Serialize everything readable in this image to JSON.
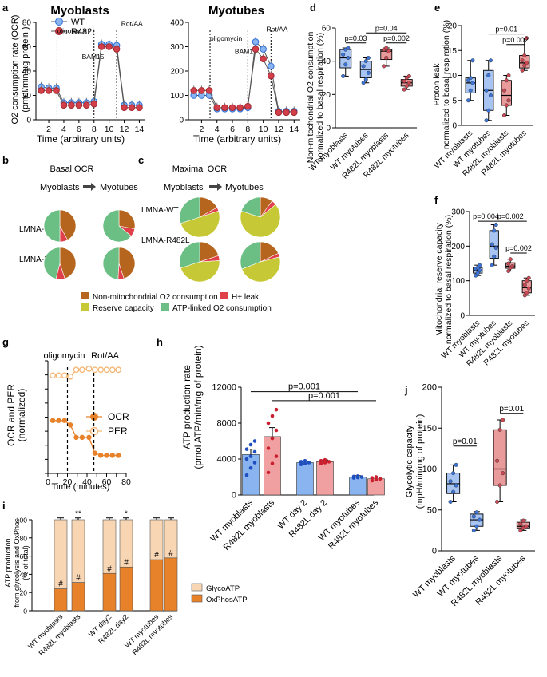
{
  "colors": {
    "wt_blue": "#8ab4f0",
    "wt_blue_dark": "#2f6fd6",
    "r482l_red": "#e88a8a",
    "r482l_red_dark": "#d23f4a",
    "nonmito": "#b5651d",
    "hleak": "#e0404a",
    "reserve": "#c6c935",
    "atplinked": "#6cbf84",
    "glyco": "#f8d6b4",
    "oxphos": "#e8822a",
    "orange": "#e8822a",
    "orange_light": "#f4b674"
  },
  "panels": {
    "a": "a",
    "b": "b",
    "c": "c",
    "d": "d",
    "e": "e",
    "f": "f",
    "g": "g",
    "h": "h",
    "i": "i",
    "j": "j"
  },
  "chart_data": [
    {
      "id": "a1",
      "type": "line",
      "title": "Myoblasts",
      "ylabel_line1": "O2 consumption rate (OCR)",
      "ylabel_line2": "(pmol/min/µg protein )",
      "xlabel": "Time (arbitrary units)",
      "xticks": [
        "2",
        "4",
        "6",
        "8",
        "10",
        "12",
        "14"
      ],
      "xtick_vals": [
        2,
        4,
        6,
        8,
        10,
        12,
        14
      ],
      "yticks": [
        "0",
        "20",
        "40",
        "60",
        "80"
      ],
      "ytick_vals": [
        0,
        20,
        40,
        60,
        80
      ],
      "xlim": [
        0.3,
        14.8
      ],
      "ylim": [
        0,
        80
      ],
      "annotations": [
        {
          "text": "oligomycin",
          "x": 3.1,
          "y": 71,
          "vline": 3.1
        },
        {
          "text": "BAM15",
          "x": 6.4,
          "y": 50,
          "vline": 8
        },
        {
          "text": "Rot/AA",
          "x": 11.6,
          "y": 77,
          "vline": 11
        }
      ],
      "legend": [
        "WT",
        "R482L"
      ],
      "x": [
        1,
        2,
        3,
        4,
        5,
        6,
        7,
        8,
        9,
        10,
        11,
        12,
        13,
        14
      ],
      "series": [
        {
          "name": "WT",
          "values": [
            27,
            26,
            26,
            14,
            14,
            14,
            14,
            15,
            62,
            62,
            61,
            12,
            12,
            12
          ]
        },
        {
          "name": "R482L",
          "values": [
            24,
            24,
            24,
            12,
            12,
            12,
            12,
            13,
            60,
            60,
            58,
            10,
            10,
            10
          ]
        }
      ]
    },
    {
      "id": "a2",
      "type": "line",
      "title": "Myotubes",
      "xlabel": "Time (arbitrary units)",
      "xticks": [
        "2",
        "4",
        "6",
        "8",
        "10",
        "12",
        "14"
      ],
      "xtick_vals": [
        2,
        4,
        6,
        8,
        10,
        12,
        14
      ],
      "yticks": [
        "0",
        "100",
        "200",
        "300",
        "400"
      ],
      "ytick_vals": [
        0,
        100,
        200,
        300,
        400
      ],
      "xlim": [
        0.3,
        14.8
      ],
      "ylim": [
        0,
        400
      ],
      "annotations": [
        {
          "text": "oligomycin",
          "x": 3.1,
          "y": 325,
          "vline": 3.1
        },
        {
          "text": "BAM15",
          "x": 6.3,
          "y": 270,
          "vline": 8
        },
        {
          "text": "Rot/AA",
          "x": 10.4,
          "y": 362,
          "vline": 11
        }
      ],
      "x": [
        1,
        2,
        3,
        4,
        5,
        6,
        7,
        8,
        9,
        10,
        11,
        12,
        13,
        14
      ],
      "series": [
        {
          "name": "WT",
          "values": [
            100,
            100,
            100,
            45,
            45,
            45,
            45,
            50,
            320,
            290,
            220,
            35,
            35,
            35
          ]
        },
        {
          "name": "R482L",
          "values": [
            120,
            120,
            120,
            50,
            50,
            50,
            50,
            55,
            290,
            250,
            180,
            30,
            30,
            30
          ]
        }
      ]
    },
    {
      "id": "b",
      "type": "pie",
      "title": "Basal OCR",
      "flow_left": "Myoblasts",
      "flow_right": "Myotubes",
      "row_labels": [
        "LMNA-WT",
        "LMNA-R482L"
      ],
      "slice_order": [
        "Non-mitochondrial O2 consumption",
        "H+ leak",
        "ATP-linked O2 consumption"
      ],
      "pies": [
        {
          "values": [
            42,
            8,
            50
          ]
        },
        {
          "values": [
            28,
            8,
            64
          ]
        },
        {
          "values": [
            45,
            9,
            46
          ]
        },
        {
          "values": [
            45,
            6,
            49
          ]
        }
      ]
    },
    {
      "id": "c",
      "type": "pie",
      "title": "Maximal OCR",
      "flow_left": "Myoblasts",
      "flow_right": "Myotubes",
      "row_labels": [
        "LMNA-WT",
        "LMNA-R482L"
      ],
      "slice_order": [
        "Non-mitochondrial O2 consumption",
        "H+ leak",
        "Reserve capacity",
        "ATP-linked O2 consumption"
      ],
      "pies": [
        {
          "values": [
            17,
            3,
            50,
            30
          ]
        },
        {
          "values": [
            10,
            4,
            66,
            20
          ]
        },
        {
          "values": [
            20,
            4,
            46,
            30
          ]
        },
        {
          "values": [
            18,
            3,
            48,
            31
          ]
        }
      ],
      "legend": [
        "Non-mitochondrial O2 consumption",
        "H+ leak",
        "Reserve capacity",
        "ATP-linked O2 consumption"
      ]
    },
    {
      "id": "d",
      "type": "box",
      "ylabel_line1": "Non-mitochondrial O2 consumption",
      "ylabel_line2": "normalized to basal respiration (%)",
      "categories": [
        "WT myoblasts",
        "WT myotubes",
        "R482L myoblasts",
        "R482L myotubes"
      ],
      "yticks": [
        "0",
        "20",
        "40",
        "60"
      ],
      "ytick_vals": [
        0,
        20,
        40,
        60
      ],
      "ylim": [
        0,
        60
      ],
      "boxes": [
        {
          "min": 31,
          "q1": 36,
          "median": 42,
          "q3": 47,
          "max": 48,
          "points": [
            31,
            38,
            42,
            44,
            47,
            48
          ]
        },
        {
          "min": 27,
          "q1": 30,
          "median": 35,
          "q3": 40,
          "max": 42,
          "points": [
            27,
            29,
            33,
            37,
            40,
            42
          ]
        },
        {
          "min": 37,
          "q1": 41,
          "median": 46,
          "q3": 47,
          "max": 48,
          "points": [
            37,
            42,
            46,
            47,
            48
          ]
        },
        {
          "min": 23,
          "q1": 25,
          "median": 27,
          "q3": 29,
          "max": 31,
          "points": [
            23,
            25,
            27,
            28,
            30,
            31
          ]
        }
      ],
      "sig": [
        {
          "a": 0,
          "b": 1,
          "label": "p=0.03",
          "y": 51
        },
        {
          "a": 2,
          "b": 3,
          "label": "p=0.002",
          "y": 51
        },
        {
          "a": 1,
          "b": 3,
          "label": "p=0.04",
          "y": 57
        }
      ]
    },
    {
      "id": "e",
      "type": "box",
      "ylabel_line1": "Proton leak",
      "ylabel_line2": "normalized to basal respiration (%)",
      "categories": [
        "WT myoblasts",
        "WT myotubes",
        "R482L myoblasts",
        "R482L myotubes"
      ],
      "yticks": [
        "0",
        "5",
        "10",
        "15",
        "20"
      ],
      "ytick_vals": [
        0,
        5,
        10,
        15,
        20
      ],
      "ylim": [
        0,
        20
      ],
      "boxes": [
        {
          "min": 5,
          "q1": 6.5,
          "median": 8.5,
          "q3": 9.5,
          "max": 13,
          "points": [
            5,
            7,
            8.5,
            9,
            9.5,
            13
          ]
        },
        {
          "min": 1,
          "q1": 3,
          "median": 7,
          "q3": 11,
          "max": 13,
          "points": [
            1,
            3,
            6,
            7,
            10,
            13
          ]
        },
        {
          "min": 2,
          "q1": 4,
          "median": 6,
          "q3": 9,
          "max": 10,
          "points": [
            2,
            4,
            5,
            7,
            9,
            10
          ]
        },
        {
          "min": 11,
          "q1": 11.5,
          "median": 12.5,
          "q3": 14,
          "max": 17.5,
          "points": [
            11,
            12,
            12.5,
            13,
            14,
            17.5
          ]
        }
      ],
      "sig": [
        {
          "a": 2,
          "b": 3,
          "label": "p=0.002",
          "y": 16.2
        },
        {
          "a": 1,
          "b": 3,
          "label": "p=0.01",
          "y": 18.3
        }
      ]
    },
    {
      "id": "f",
      "type": "box",
      "ylabel_line1": "Mitochondrial reserve capacity",
      "ylabel_line2": "normalized to basal respiration (%)",
      "categories": [
        "WT myoblasts",
        "WT myotubes",
        "R482L myoblasts",
        "R482L myotubes"
      ],
      "yticks": [
        "0",
        "100",
        "200",
        "300"
      ],
      "ytick_vals": [
        0,
        100,
        200,
        300
      ],
      "ylim": [
        0,
        300
      ],
      "boxes": [
        {
          "min": 115,
          "q1": 122,
          "median": 130,
          "q3": 138,
          "max": 145,
          "points": [
            115,
            122,
            130,
            135,
            138,
            145
          ]
        },
        {
          "min": 145,
          "q1": 165,
          "median": 200,
          "q3": 245,
          "max": 262,
          "points": [
            145,
            170,
            195,
            205,
            245,
            262
          ]
        },
        {
          "min": 128,
          "q1": 136,
          "median": 142,
          "q3": 152,
          "max": 162,
          "points": [
            128,
            138,
            142,
            150,
            162
          ]
        },
        {
          "min": 58,
          "q1": 65,
          "median": 80,
          "q3": 100,
          "max": 108,
          "points": [
            58,
            65,
            78,
            88,
            100,
            108
          ]
        }
      ],
      "sig": [
        {
          "a": 0,
          "b": 1,
          "label": "p=0.004",
          "y": 272
        },
        {
          "a": 1,
          "b": 3,
          "label": "p=0.002",
          "y": 272
        },
        {
          "a": 2,
          "b": 3,
          "label": "p=0.002",
          "y": 180
        }
      ]
    },
    {
      "id": "g",
      "type": "line",
      "ylabel_line1": "OCR and PER",
      "ylabel_line2": "(normalized)",
      "xlabel": "Time (minutes)",
      "xticks": [
        "0",
        "10",
        "20",
        "30",
        "40",
        "50",
        "60",
        "70",
        "80"
      ],
      "xtick_vals": [
        0,
        10,
        20,
        30,
        40,
        50,
        60,
        70,
        80
      ],
      "xlim": [
        0,
        80
      ],
      "ylim": [
        0,
        1
      ],
      "annotations": [
        {
          "text": "oligomycin",
          "x": 20,
          "vline": 20
        },
        {
          "text": "Rot/AA",
          "x": 47,
          "vline": 47
        }
      ],
      "legend": [
        "OCR",
        "PER"
      ],
      "x": [
        5,
        11,
        17,
        23,
        29,
        35,
        42,
        48,
        54,
        60,
        66,
        72
      ],
      "series": [
        {
          "name": "OCR",
          "values": [
            0.47,
            0.47,
            0.47,
            0.43,
            0.32,
            0.32,
            0.32,
            0.18,
            0.16,
            0.16,
            0.16,
            0.16
          ]
        },
        {
          "name": "PER",
          "values": [
            0.87,
            0.87,
            0.87,
            0.86,
            0.92,
            0.92,
            0.93,
            0.92,
            0.92,
            0.92,
            0.92,
            0.92
          ]
        }
      ]
    },
    {
      "id": "h",
      "type": "bar",
      "ylabel_line1": "ATP production rate",
      "ylabel_line2": "(pmol ATP/min/mg of protein)",
      "categories": [
        "WT myoblasts",
        "R482L myoblasts",
        "WT day 2",
        "R482L day 2",
        "WT myotubes",
        "R482L myotubes"
      ],
      "values": [
        4500,
        6500,
        3600,
        3700,
        2000,
        1800
      ],
      "errors": [
        600,
        1000,
        150,
        200,
        150,
        200
      ],
      "points": [
        [
          2200,
          3000,
          3600,
          4000,
          4300,
          4800,
          5100,
          5600,
          6000
        ],
        [
          2500,
          3500,
          4300,
          5200,
          6300,
          7200,
          8000,
          8800,
          9500
        ],
        [
          3400,
          3500,
          3600,
          3700,
          3800
        ],
        [
          3500,
          3600,
          3700,
          3800,
          3900
        ],
        [
          1900,
          1950,
          2000,
          2050,
          2100
        ],
        [
          1600,
          1700,
          1800,
          1900,
          2000
        ]
      ],
      "yticks": [
        "0",
        "4000",
        "8000",
        "12000"
      ],
      "ytick_vals": [
        0,
        4000,
        8000,
        12000
      ],
      "ylim": [
        0,
        12000
      ],
      "sig": [
        {
          "a": 0,
          "b": 4,
          "label": "p=0.001",
          "y": 11500
        },
        {
          "a": 1,
          "b": 5,
          "label": "p=0.001",
          "y": 10500
        }
      ]
    },
    {
      "id": "i",
      "type": "bar",
      "ylabel_line1": "ATP production",
      "ylabel_line2": "from glycolysis and OxPhos",
      "ylabel_line3": "(% of total)",
      "categories": [
        "WT myoblasts",
        "R482L myoblasts",
        "WT day2",
        "R482L day2",
        "WT myotubes",
        "R482L myotubes"
      ],
      "stacked": true,
      "series": [
        {
          "name": "OxPhosATP",
          "values": [
            24,
            31,
            41,
            48,
            56,
            58
          ]
        },
        {
          "name": "GlycoATP",
          "values": [
            76,
            69,
            59,
            52,
            44,
            42
          ]
        }
      ],
      "marks_top": [
        "",
        "**",
        "",
        "*",
        "",
        ""
      ],
      "marks_inside": [
        "#",
        "#",
        "#",
        "#",
        "#",
        "#"
      ],
      "yticks": [
        "0",
        "20",
        "40",
        "60",
        "80",
        "100"
      ],
      "ytick_vals": [
        0,
        20,
        40,
        60,
        80,
        100
      ],
      "ylim": [
        0,
        100
      ],
      "legend": [
        "GlycoATP",
        "OxPhosATP"
      ]
    },
    {
      "id": "j",
      "type": "box",
      "ylabel_line1": "Glycolytic capacity",
      "ylabel_line2": "(mpH/min/mg of protein)",
      "categories": [
        "WT myoblasts",
        "WT myotubes",
        "R482L myoblasts",
        "R482L myotubes"
      ],
      "yticks": [
        "0",
        "50",
        "100",
        "150",
        "200"
      ],
      "ytick_vals": [
        0,
        50,
        100,
        150,
        200
      ],
      "ylim": [
        0,
        200
      ],
      "boxes": [
        {
          "min": 60,
          "q1": 70,
          "median": 82,
          "q3": 95,
          "max": 105,
          "points": [
            60,
            72,
            80,
            85,
            95,
            105
          ]
        },
        {
          "min": 25,
          "q1": 30,
          "median": 38,
          "q3": 45,
          "max": 48,
          "points": [
            25,
            30,
            38,
            42,
            47
          ]
        },
        {
          "min": 60,
          "q1": 80,
          "median": 100,
          "q3": 148,
          "max": 160,
          "points": [
            60,
            80,
            95,
            110,
            148,
            160
          ]
        },
        {
          "min": 25,
          "q1": 28,
          "median": 30,
          "q3": 35,
          "max": 38,
          "points": [
            25,
            28,
            30,
            33,
            37
          ]
        }
      ],
      "sig": [
        {
          "a": 0,
          "b": 1,
          "label": "p=0.01",
          "y": 128
        },
        {
          "a": 2,
          "b": 3,
          "label": "p=0.01",
          "y": 168
        }
      ]
    }
  ]
}
